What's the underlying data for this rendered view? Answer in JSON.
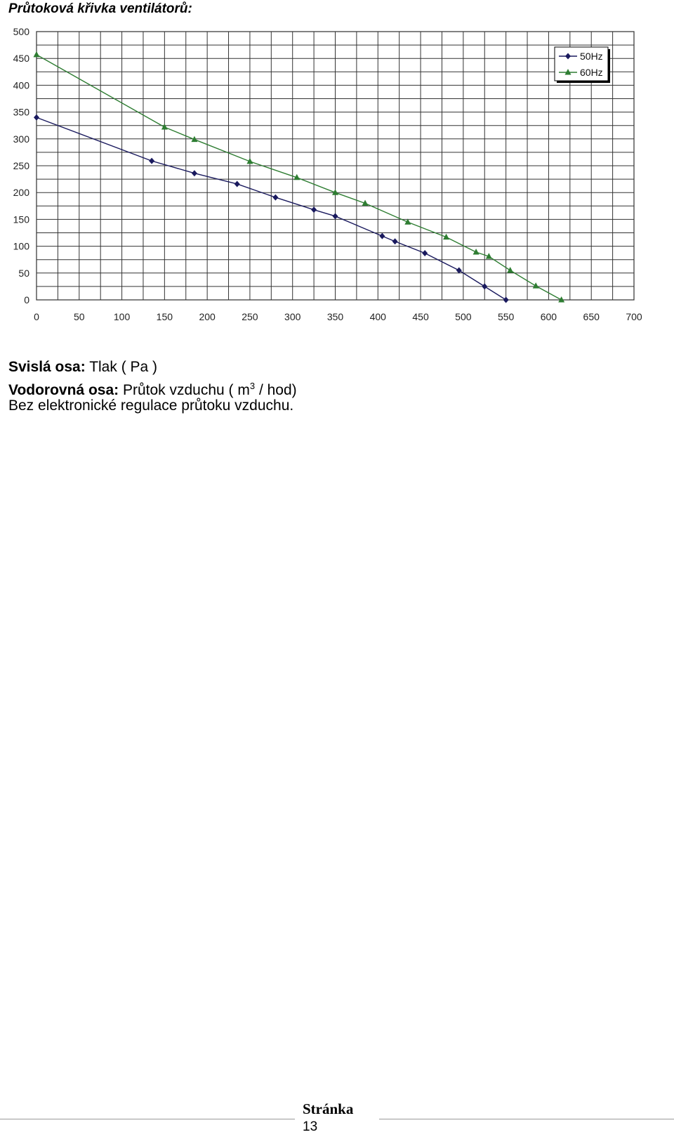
{
  "document": {
    "title": "Průtoková křivka ventilátorů:"
  },
  "captions": {
    "vertical_label": "Svislá osa:",
    "vertical_text": " Tlak ( Pa )",
    "horizontal_label": "Vodorovná osa:",
    "horizontal_text_before": " Průtok vzduchu ( m",
    "horizontal_sup": "3",
    "horizontal_text_after": " / hod)",
    "note": "Bez elektronické regulace průtoku vzduchu."
  },
  "footer": {
    "label": "Stránka",
    "page_number": "13"
  },
  "chart_data": {
    "type": "line",
    "xlim": [
      0,
      700
    ],
    "ylim": [
      0,
      500
    ],
    "x_ticks": [
      0,
      50,
      100,
      150,
      200,
      250,
      300,
      350,
      400,
      450,
      500,
      550,
      600,
      650,
      700
    ],
    "y_ticks": [
      0,
      50,
      100,
      150,
      200,
      250,
      300,
      350,
      400,
      450,
      500
    ],
    "grid": true,
    "legend_position": "top-right",
    "series": [
      {
        "name": "50Hz",
        "color": "#1a1a5e",
        "marker": "diamond",
        "points": [
          [
            0,
            340
          ],
          [
            135,
            259
          ],
          [
            185,
            236
          ],
          [
            235,
            216
          ],
          [
            280,
            191
          ],
          [
            325,
            168
          ],
          [
            350,
            156
          ],
          [
            405,
            119
          ],
          [
            420,
            109
          ],
          [
            455,
            87
          ],
          [
            495,
            55
          ],
          [
            525,
            25
          ],
          [
            550,
            0
          ]
        ]
      },
      {
        "name": "60Hz",
        "color": "#2e7d32",
        "marker": "triangle",
        "points": [
          [
            0,
            457
          ],
          [
            150,
            322
          ],
          [
            185,
            299
          ],
          [
            250,
            258
          ],
          [
            305,
            228
          ],
          [
            350,
            200
          ],
          [
            385,
            180
          ],
          [
            435,
            145
          ],
          [
            480,
            117
          ],
          [
            515,
            89
          ],
          [
            530,
            81
          ],
          [
            555,
            55
          ],
          [
            585,
            26
          ],
          [
            615,
            0
          ]
        ]
      }
    ]
  }
}
